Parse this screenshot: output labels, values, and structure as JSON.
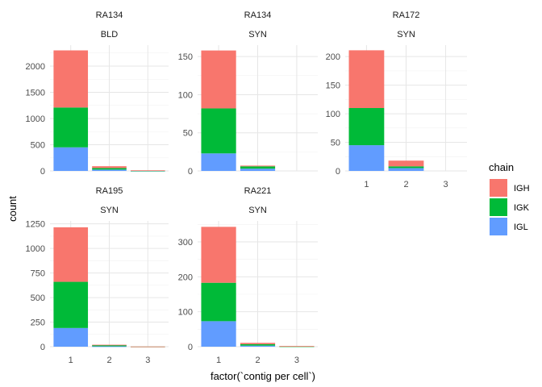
{
  "chart_data": {
    "type": "bar",
    "stacked": true,
    "xlabel": "factor(`contig per cell`)",
    "ylabel": "count",
    "categories": [
      "1",
      "2",
      "3"
    ],
    "legend": {
      "title": "chain",
      "position": "right",
      "items": [
        {
          "name": "IGH",
          "color": "#F8766D"
        },
        {
          "name": "IGK",
          "color": "#00BA38"
        },
        {
          "name": "IGL",
          "color": "#619CFF"
        }
      ]
    },
    "facets": [
      {
        "strip1": "RA134",
        "strip2": "BLD",
        "ylim": [
          0,
          2400
        ],
        "yticks": [
          0,
          500,
          1000,
          1500,
          2000
        ],
        "show_x_ticks": false,
        "series": [
          {
            "name": "IGH",
            "values": [
              1090,
              35,
              6
            ]
          },
          {
            "name": "IGK",
            "values": [
              760,
              30,
              4
            ]
          },
          {
            "name": "IGL",
            "values": [
              450,
              25,
              2
            ]
          }
        ]
      },
      {
        "strip1": "RA134",
        "strip2": "SYN",
        "ylim": [
          0,
          165
        ],
        "yticks": [
          0,
          50,
          100,
          150
        ],
        "show_x_ticks": false,
        "series": [
          {
            "name": "IGH",
            "values": [
              76,
              1,
              0
            ]
          },
          {
            "name": "IGK",
            "values": [
              59,
              3,
              0
            ]
          },
          {
            "name": "IGL",
            "values": [
              23,
              3,
              0
            ]
          }
        ]
      },
      {
        "strip1": "RA172",
        "strip2": "SYN",
        "ylim": [
          0,
          220
        ],
        "yticks": [
          0,
          50,
          100,
          150,
          200
        ],
        "show_x_ticks": true,
        "series": [
          {
            "name": "IGH",
            "values": [
              101,
              10,
              0
            ]
          },
          {
            "name": "IGK",
            "values": [
              65,
              3,
              0
            ]
          },
          {
            "name": "IGL",
            "values": [
              45,
              5,
              0
            ]
          }
        ]
      },
      {
        "strip1": "RA195",
        "strip2": "SYN",
        "ylim": [
          0,
          1280
        ],
        "yticks": [
          0,
          250,
          500,
          750,
          1000,
          1250
        ],
        "show_x_ticks": true,
        "series": [
          {
            "name": "IGH",
            "values": [
              555,
              4,
              1
            ]
          },
          {
            "name": "IGK",
            "values": [
              470,
              12,
              1
            ]
          },
          {
            "name": "IGL",
            "values": [
              190,
              4,
              0
            ]
          }
        ]
      },
      {
        "strip1": "RA221",
        "strip2": "SYN",
        "ylim": [
          0,
          360
        ],
        "yticks": [
          0,
          100,
          200,
          300
        ],
        "show_x_ticks": true,
        "series": [
          {
            "name": "IGH",
            "values": [
              160,
              4,
              1
            ]
          },
          {
            "name": "IGK",
            "values": [
              110,
              4,
              1
            ]
          },
          {
            "name": "IGL",
            "values": [
              73,
              3,
              0
            ]
          }
        ]
      }
    ]
  }
}
